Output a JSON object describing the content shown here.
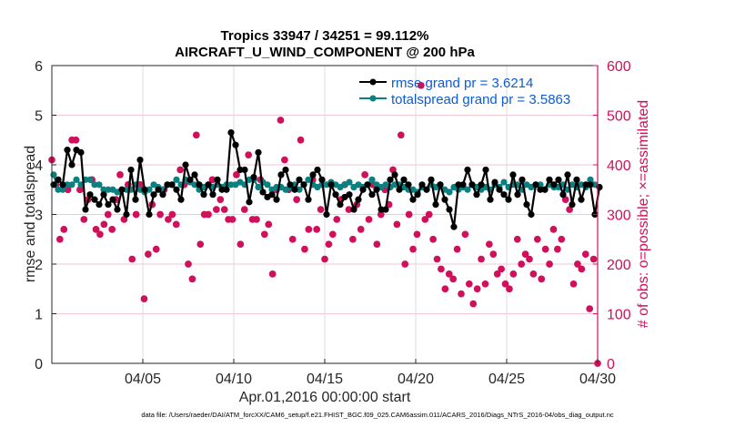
{
  "chart_data": {
    "type": "line",
    "title": "Tropics 33947 / 34251 = 99.112%",
    "subtitle": "AIRCRAFT_U_WIND_COMPONENT @ 200 hPa",
    "xlabel": "Apr.01,2016 00:00:00 start",
    "ylabel": "rmse and totalspread",
    "y2label": "# of obs: o=possible; ×=assimilated",
    "xlim_days": [
      0,
      30
    ],
    "ylim": [
      0,
      6
    ],
    "y2lim": [
      0,
      600
    ],
    "grid": true,
    "x_ticks": [
      {
        "day": 4,
        "label": "04/05"
      },
      {
        "day": 9,
        "label": "04/10"
      },
      {
        "day": 14,
        "label": "04/15"
      },
      {
        "day": 19,
        "label": "04/20"
      },
      {
        "day": 24,
        "label": "04/25"
      },
      {
        "day": 29,
        "label": "04/30"
      }
    ],
    "y_ticks": [
      "0",
      "1",
      "2",
      "3",
      "4",
      "5",
      "6"
    ],
    "y2_ticks": [
      "0",
      "100",
      "200",
      "300",
      "400",
      "500",
      "600"
    ],
    "legend_position": "top-right",
    "time_step_days": 0.25,
    "series": [
      {
        "name": "rmse grand pr = 3.6214",
        "color": "#000000",
        "values": [
          3.6,
          3.7,
          3.6,
          4.3,
          4.0,
          4.3,
          4.25,
          3.1,
          3.4,
          3.3,
          3.2,
          3.4,
          3.2,
          3.3,
          3.1,
          3.5,
          3.0,
          3.9,
          3.3,
          4.1,
          3.5,
          3.0,
          3.4,
          3.5,
          3.4,
          3.6,
          3.6,
          3.5,
          3.3,
          4.0,
          3.7,
          3.8,
          3.6,
          3.4,
          3.6,
          3.4,
          3.7,
          3.5,
          3.5,
          4.65,
          4.4,
          3.9,
          3.9,
          3.25,
          3.75,
          4.25,
          3.45,
          3.35,
          3.4,
          3.3,
          3.8,
          3.9,
          3.6,
          3.5,
          3.7,
          3.6,
          3.3,
          3.8,
          3.9,
          3.7,
          3.0,
          3.6,
          3.4,
          3.2,
          3.35,
          3.4,
          3.1,
          3.3,
          3.5,
          3.6,
          3.4,
          3.5,
          3.1,
          3.1,
          3.7,
          3.8,
          3.5,
          3.7,
          3.6,
          3.3,
          3.4,
          3.6,
          3.5,
          3.7,
          3.2,
          3.6,
          3.3,
          3.1,
          2.75,
          3.6,
          3.6,
          3.9,
          3.6,
          3.4,
          3.6,
          3.9,
          3.3,
          3.65,
          3.5,
          3.4,
          3.3,
          3.8,
          3.4,
          3.7,
          3.2,
          3.0,
          3.6,
          3.5,
          3.5,
          3.7,
          3.6,
          3.7,
          3.4,
          3.8,
          3.2,
          3.7,
          3.3,
          3.6,
          3.6,
          3.0,
          3.55
        ],
        "note": "approximate, read from plot"
      },
      {
        "name": "totalspread grand pr = 3.5863",
        "color": "#0b8080",
        "values": [
          3.8,
          3.5,
          3.5,
          3.6,
          3.6,
          3.7,
          3.6,
          3.7,
          3.7,
          3.6,
          3.6,
          3.5,
          3.5,
          3.5,
          3.45,
          3.5,
          3.5,
          3.5,
          3.6,
          3.5,
          3.45,
          3.5,
          3.6,
          3.55,
          3.5,
          3.6,
          3.6,
          3.7,
          3.6,
          3.7,
          3.65,
          3.6,
          3.5,
          3.55,
          3.6,
          3.55,
          3.6,
          3.55,
          3.6,
          3.6,
          3.6,
          3.65,
          3.6,
          3.7,
          3.7,
          3.55,
          3.65,
          3.6,
          3.5,
          3.55,
          3.55,
          3.5,
          3.55,
          3.6,
          3.5,
          3.6,
          3.7,
          3.6,
          3.55,
          3.6,
          3.6,
          3.65,
          3.6,
          3.55,
          3.6,
          3.65,
          3.55,
          3.6,
          3.55,
          3.6,
          3.7,
          3.6,
          3.55,
          3.6,
          3.55,
          3.6,
          3.6,
          3.55,
          3.5,
          3.5,
          3.45,
          3.55,
          3.5,
          3.6,
          3.55,
          3.6,
          3.5,
          3.45,
          3.55,
          3.5,
          3.55,
          3.5,
          3.6,
          3.55,
          3.5,
          3.55,
          3.5,
          3.6,
          3.55,
          3.65,
          3.55,
          3.6,
          3.6,
          3.5,
          3.6,
          3.55,
          3.6,
          3.6,
          3.5,
          3.6,
          3.55,
          3.55,
          3.6,
          3.5,
          3.6,
          3.55,
          3.6,
          3.55,
          3.7,
          3.6
        ],
        "note": "approximate, read from plot"
      }
    ],
    "obs_count": {
      "name": "# of obs",
      "color": "#d0105a",
      "possible_and_assimilated": [
        410,
        360,
        250,
        270,
        350,
        450,
        450,
        350,
        290,
        330,
        370,
        270,
        260,
        280,
        300,
        270,
        330,
        380,
        290,
        360,
        210,
        300,
        360,
        130,
        220,
        320,
        230,
        300,
        350,
        290,
        300,
        280,
        390,
        360,
        200,
        170,
        460,
        240,
        300,
        300,
        370,
        310,
        330,
        310,
        290,
        290,
        380,
        240,
        310,
        420,
        290,
        290,
        370,
        260,
        280,
        180,
        350,
        490,
        410,
        350,
        250,
        330,
        450,
        230,
        270,
        370,
        270,
        310,
        210,
        240,
        260,
        290,
        330,
        360,
        310,
        250,
        320,
        270,
        380,
        290,
        360,
        240,
        300,
        350,
        320,
        390,
        280,
        460,
        200,
        300,
        230,
        260,
        560,
        290,
        300,
        250,
        210,
        190,
        150,
        180,
        170,
        230,
        140,
        260,
        160,
        120,
        150,
        210,
        160,
        240,
        220,
        180,
        190,
        160,
        150,
        180,
        250,
        200,
        220,
        210,
        180,
        250,
        170,
        230,
        200,
        270,
        230,
        250,
        330,
        310,
        160,
        200,
        190,
        220,
        110,
        210,
        0
      ]
    }
  },
  "footer": "data file: /Users/raeder/DAI/ATM_forcXX/CAM6_setup/f.e21.FHIST_BGC.f09_025.CAM6assim.011/ACARS_2016/Diags_NTrS_2016-04/obs_diag_output.nc"
}
